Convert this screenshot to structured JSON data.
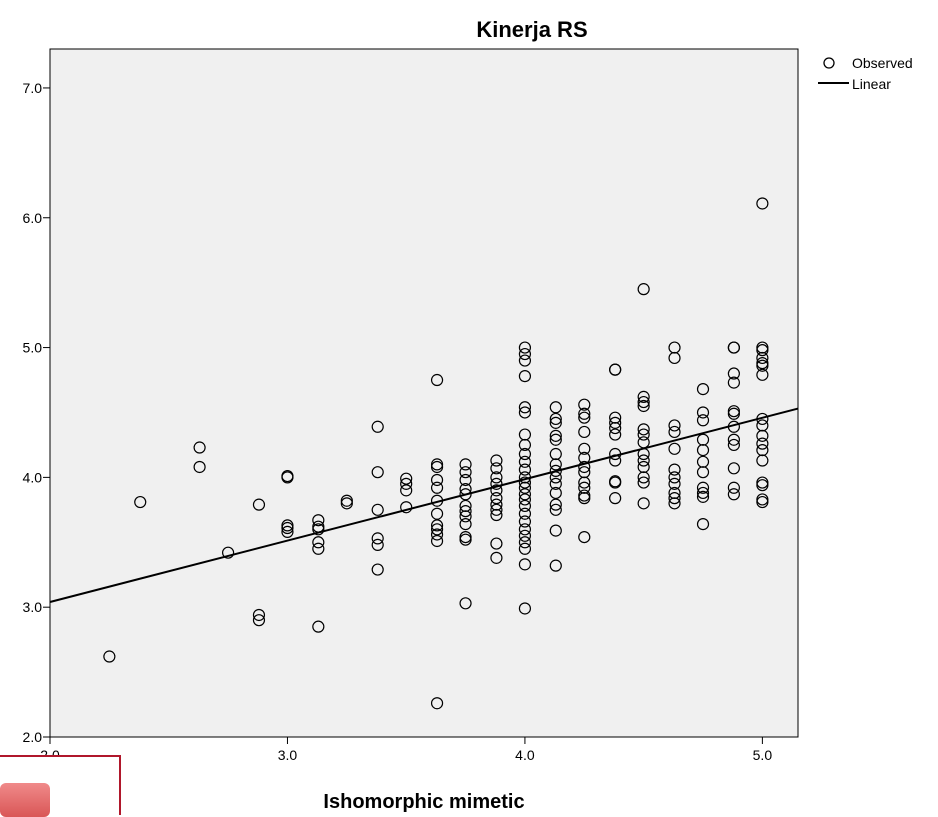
{
  "chart_data": {
    "type": "scatter",
    "title": "Kinerja RS",
    "xlabel": "Ishomorphic mimetic",
    "ylabel": "",
    "xlim": [
      2.0,
      5.15
    ],
    "ylim": [
      2.0,
      7.3
    ],
    "xticks": [
      2.0,
      3.0,
      4.0,
      5.0
    ],
    "xtick_labels": [
      "2.0",
      "3.0",
      "4.0",
      "5.0"
    ],
    "yticks": [
      2.0,
      3.0,
      4.0,
      5.0,
      6.0,
      7.0
    ],
    "ytick_labels": [
      "2.0",
      "3.0",
      "4.0",
      "5.0",
      "6.0",
      "7.0"
    ],
    "grid": false,
    "legend": {
      "placement": "top-right outside",
      "entries": [
        {
          "marker": "circle",
          "label": "Observed"
        },
        {
          "marker": "line",
          "label": "Linear"
        }
      ]
    },
    "series": [
      {
        "name": "Observed",
        "marker": "open-circle",
        "points": [
          [
            2.25,
            2.62
          ],
          [
            2.38,
            3.81
          ],
          [
            2.63,
            4.23
          ],
          [
            2.63,
            4.08
          ],
          [
            2.75,
            3.42
          ],
          [
            2.88,
            3.79
          ],
          [
            2.88,
            2.94
          ],
          [
            2.88,
            2.9
          ],
          [
            3.0,
            4.0
          ],
          [
            3.0,
            4.01
          ],
          [
            3.0,
            3.63
          ],
          [
            3.0,
            3.61
          ],
          [
            3.0,
            3.58
          ],
          [
            3.13,
            3.67
          ],
          [
            3.13,
            3.62
          ],
          [
            3.13,
            3.6
          ],
          [
            3.13,
            3.5
          ],
          [
            3.13,
            3.45
          ],
          [
            3.13,
            2.85
          ],
          [
            3.25,
            3.82
          ],
          [
            3.25,
            3.8
          ],
          [
            3.38,
            4.39
          ],
          [
            3.38,
            4.04
          ],
          [
            3.38,
            3.75
          ],
          [
            3.38,
            3.53
          ],
          [
            3.38,
            3.48
          ],
          [
            3.38,
            3.29
          ],
          [
            3.5,
            3.99
          ],
          [
            3.5,
            3.95
          ],
          [
            3.5,
            3.9
          ],
          [
            3.5,
            3.77
          ],
          [
            3.63,
            4.75
          ],
          [
            3.63,
            4.1
          ],
          [
            3.63,
            4.08
          ],
          [
            3.63,
            3.98
          ],
          [
            3.63,
            3.92
          ],
          [
            3.63,
            3.82
          ],
          [
            3.63,
            3.72
          ],
          [
            3.63,
            3.63
          ],
          [
            3.63,
            3.6
          ],
          [
            3.63,
            3.56
          ],
          [
            3.63,
            3.51
          ],
          [
            3.63,
            2.26
          ],
          [
            3.75,
            4.1
          ],
          [
            3.75,
            4.04
          ],
          [
            3.75,
            3.98
          ],
          [
            3.75,
            3.91
          ],
          [
            3.75,
            3.87
          ],
          [
            3.75,
            3.78
          ],
          [
            3.75,
            3.74
          ],
          [
            3.75,
            3.7
          ],
          [
            3.75,
            3.64
          ],
          [
            3.75,
            3.54
          ],
          [
            3.75,
            3.52
          ],
          [
            3.75,
            3.03
          ],
          [
            3.88,
            4.13
          ],
          [
            3.88,
            4.07
          ],
          [
            3.88,
            4.0
          ],
          [
            3.88,
            3.95
          ],
          [
            3.88,
            3.9
          ],
          [
            3.88,
            3.84
          ],
          [
            3.88,
            3.79
          ],
          [
            3.88,
            3.75
          ],
          [
            3.88,
            3.71
          ],
          [
            3.88,
            3.49
          ],
          [
            3.88,
            3.38
          ],
          [
            4.0,
            5.0
          ],
          [
            4.0,
            4.95
          ],
          [
            4.0,
            4.9
          ],
          [
            4.0,
            4.78
          ],
          [
            4.0,
            4.54
          ],
          [
            4.0,
            4.5
          ],
          [
            4.0,
            4.33
          ],
          [
            4.0,
            4.25
          ],
          [
            4.0,
            4.18
          ],
          [
            4.0,
            4.12
          ],
          [
            4.0,
            4.06
          ],
          [
            4.0,
            4.0
          ],
          [
            4.0,
            3.96
          ],
          [
            4.0,
            3.92
          ],
          [
            4.0,
            3.87
          ],
          [
            4.0,
            3.83
          ],
          [
            4.0,
            3.78
          ],
          [
            4.0,
            3.72
          ],
          [
            4.0,
            3.66
          ],
          [
            4.0,
            3.6
          ],
          [
            4.0,
            3.55
          ],
          [
            4.0,
            3.5
          ],
          [
            4.0,
            3.45
          ],
          [
            4.0,
            3.33
          ],
          [
            4.0,
            2.99
          ],
          [
            4.13,
            4.54
          ],
          [
            4.13,
            4.45
          ],
          [
            4.13,
            4.42
          ],
          [
            4.13,
            4.32
          ],
          [
            4.13,
            4.29
          ],
          [
            4.13,
            4.18
          ],
          [
            4.13,
            4.1
          ],
          [
            4.13,
            4.05
          ],
          [
            4.13,
            4.0
          ],
          [
            4.13,
            3.95
          ],
          [
            4.13,
            3.88
          ],
          [
            4.13,
            3.79
          ],
          [
            4.13,
            3.75
          ],
          [
            4.13,
            3.59
          ],
          [
            4.13,
            3.32
          ],
          [
            4.25,
            4.56
          ],
          [
            4.25,
            4.49
          ],
          [
            4.25,
            4.46
          ],
          [
            4.25,
            4.35
          ],
          [
            4.25,
            4.22
          ],
          [
            4.25,
            4.15
          ],
          [
            4.25,
            4.08
          ],
          [
            4.25,
            4.04
          ],
          [
            4.25,
            3.96
          ],
          [
            4.25,
            3.92
          ],
          [
            4.25,
            3.86
          ],
          [
            4.25,
            3.84
          ],
          [
            4.25,
            3.54
          ],
          [
            4.38,
            4.83
          ],
          [
            4.38,
            4.83
          ],
          [
            4.38,
            4.46
          ],
          [
            4.38,
            4.42
          ],
          [
            4.38,
            4.38
          ],
          [
            4.38,
            4.33
          ],
          [
            4.38,
            4.18
          ],
          [
            4.38,
            4.13
          ],
          [
            4.38,
            3.97
          ],
          [
            4.38,
            3.96
          ],
          [
            4.38,
            3.84
          ],
          [
            4.5,
            5.45
          ],
          [
            4.5,
            4.62
          ],
          [
            4.5,
            4.58
          ],
          [
            4.5,
            4.55
          ],
          [
            4.5,
            4.37
          ],
          [
            4.5,
            4.33
          ],
          [
            4.5,
            4.27
          ],
          [
            4.5,
            4.18
          ],
          [
            4.5,
            4.13
          ],
          [
            4.5,
            4.08
          ],
          [
            4.5,
            4.0
          ],
          [
            4.5,
            3.96
          ],
          [
            4.5,
            3.8
          ],
          [
            4.63,
            5.0
          ],
          [
            4.63,
            4.92
          ],
          [
            4.63,
            4.4
          ],
          [
            4.63,
            4.35
          ],
          [
            4.63,
            4.22
          ],
          [
            4.63,
            4.06
          ],
          [
            4.63,
            4.0
          ],
          [
            4.63,
            3.95
          ],
          [
            4.63,
            3.88
          ],
          [
            4.63,
            3.84
          ],
          [
            4.63,
            3.8
          ],
          [
            4.75,
            4.68
          ],
          [
            4.75,
            4.5
          ],
          [
            4.75,
            4.44
          ],
          [
            4.75,
            4.29
          ],
          [
            4.75,
            4.21
          ],
          [
            4.75,
            4.12
          ],
          [
            4.75,
            4.04
          ],
          [
            4.75,
            3.92
          ],
          [
            4.75,
            3.88
          ],
          [
            4.75,
            3.85
          ],
          [
            4.75,
            3.64
          ],
          [
            4.88,
            5.0
          ],
          [
            4.88,
            5.0
          ],
          [
            4.88,
            4.8
          ],
          [
            4.88,
            4.73
          ],
          [
            4.88,
            4.51
          ],
          [
            4.88,
            4.49
          ],
          [
            4.88,
            4.39
          ],
          [
            4.88,
            4.29
          ],
          [
            4.88,
            4.25
          ],
          [
            4.88,
            4.07
          ],
          [
            4.88,
            3.92
          ],
          [
            4.88,
            3.87
          ],
          [
            5.0,
            6.11
          ],
          [
            5.0,
            5.0
          ],
          [
            5.0,
            4.98
          ],
          [
            5.0,
            4.92
          ],
          [
            5.0,
            4.88
          ],
          [
            5.0,
            4.86
          ],
          [
            5.0,
            4.79
          ],
          [
            5.0,
            4.45
          ],
          [
            5.0,
            4.4
          ],
          [
            5.0,
            4.32
          ],
          [
            5.0,
            4.26
          ],
          [
            5.0,
            4.21
          ],
          [
            5.0,
            4.13
          ],
          [
            5.0,
            3.96
          ],
          [
            5.0,
            3.94
          ],
          [
            5.0,
            3.83
          ],
          [
            5.0,
            3.81
          ]
        ]
      },
      {
        "name": "Linear",
        "type": "line",
        "points": [
          [
            2.0,
            3.04
          ],
          [
            5.15,
            4.53
          ]
        ]
      }
    ]
  }
}
